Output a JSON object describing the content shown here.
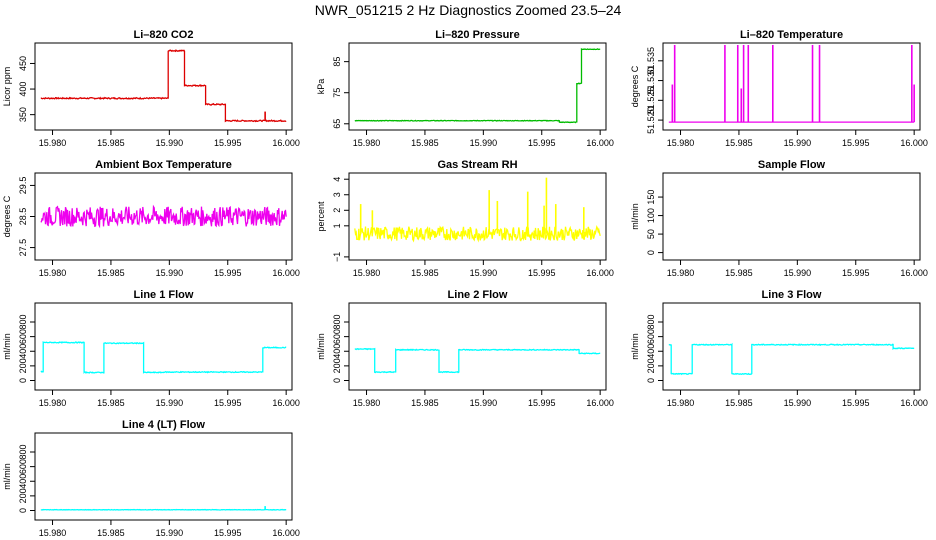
{
  "page": {
    "title": "NWR_051215  2 Hz Diagnostics Zoomed 23.5–24"
  },
  "chart_data": [
    {
      "type": "line",
      "title": "Li–820 CO2",
      "ylabel": "Licor ppm",
      "color": "#dd0000",
      "xlim": [
        15.9785,
        16.0005
      ],
      "ylim": [
        320,
        490
      ],
      "xticks": [
        15.98,
        15.985,
        15.99,
        15.995,
        16.0
      ],
      "xtick_labels": [
        "15.980",
        "15.985",
        "15.990",
        "15.995",
        "16.000"
      ],
      "yticks": [
        350,
        400,
        450
      ],
      "ytick_labels": [
        "350",
        "400",
        "450"
      ],
      "series": [
        {
          "name": "CO2",
          "noise": 1.2,
          "segments": [
            [
              15.979,
              15.9899,
              382
            ],
            [
              15.9899,
              15.9913,
              475
            ],
            [
              15.9913,
              15.9931,
              407
            ],
            [
              15.9931,
              15.9948,
              370
            ],
            [
              15.9948,
              16.0,
              338
            ]
          ],
          "spikes": [
            [
              15.9982,
              356
            ]
          ]
        }
      ]
    },
    {
      "type": "line",
      "title": "Li–820 Pressure",
      "ylabel": "kPa",
      "color": "#00bb00",
      "xlim": [
        15.9785,
        16.0005
      ],
      "ylim": [
        63,
        91
      ],
      "xticks": [
        15.98,
        15.985,
        15.99,
        15.995,
        16.0
      ],
      "xtick_labels": [
        "15.980",
        "15.985",
        "15.990",
        "15.995",
        "16.000"
      ],
      "yticks": [
        65,
        75,
        85
      ],
      "ytick_labels": [
        "65",
        "75",
        "85"
      ],
      "series": [
        {
          "name": "Pressure",
          "noise": 0.1,
          "segments": [
            [
              15.979,
              15.9965,
              66
            ],
            [
              15.9965,
              15.998,
              65.5
            ],
            [
              15.998,
              15.9984,
              78
            ],
            [
              15.9984,
              16.0,
              89
            ]
          ]
        }
      ]
    },
    {
      "type": "line",
      "title": "Li–820 Temperature",
      "ylabel": "degrees C",
      "color": "#ee00ee",
      "xlim": [
        15.9785,
        16.0005
      ],
      "ylim": [
        51.5175,
        51.5395
      ],
      "xticks": [
        15.98,
        15.985,
        15.99,
        15.995,
        16.0
      ],
      "xtick_labels": [
        "15.980",
        "15.985",
        "15.990",
        "15.995",
        "16.000"
      ],
      "yticks": [
        51.52,
        51.525,
        51.53,
        51.535
      ],
      "ytick_labels": [
        "51.520",
        "51.525",
        "51.530",
        "51.535"
      ],
      "series": [
        {
          "name": "Temperature",
          "noise": 0,
          "segments": [
            [
              15.979,
              16.0,
              51.5195
            ]
          ],
          "spikes": [
            [
              15.9793,
              51.529
            ],
            [
              15.9795,
              51.539
            ],
            [
              15.9838,
              51.539
            ],
            [
              15.9849,
              51.539
            ],
            [
              15.9852,
              51.528
            ],
            [
              15.9854,
              51.539
            ],
            [
              15.9858,
              51.539
            ],
            [
              15.9879,
              51.539
            ],
            [
              15.9913,
              51.539
            ],
            [
              15.9919,
              51.539
            ],
            [
              15.9998,
              51.539
            ],
            [
              16.0,
              51.529
            ]
          ]
        }
      ]
    },
    {
      "type": "line",
      "title": "Ambient Box Temperature",
      "ylabel": "degrees C",
      "color": "#ee00ee",
      "xlim": [
        15.9785,
        16.0005
      ],
      "ylim": [
        27.1,
        29.9
      ],
      "xticks": [
        15.98,
        15.985,
        15.99,
        15.995,
        16.0
      ],
      "xtick_labels": [
        "15.980",
        "15.985",
        "15.990",
        "15.995",
        "16.000"
      ],
      "yticks": [
        27.5,
        28.5,
        29.5
      ],
      "ytick_labels": [
        "27.5",
        "28.5",
        "29.5"
      ],
      "series": [
        {
          "name": "Ambient",
          "noise": 0.32,
          "segments": [
            [
              15.979,
              16.0,
              28.5
            ]
          ]
        }
      ]
    },
    {
      "type": "line",
      "title": "Gas Stream RH",
      "ylabel": "percent",
      "color": "#ffff00",
      "xlim": [
        15.9785,
        16.0005
      ],
      "ylim": [
        -1.2,
        4.4
      ],
      "xticks": [
        15.98,
        15.985,
        15.99,
        15.995,
        16.0
      ],
      "xtick_labels": [
        "15.980",
        "15.985",
        "15.990",
        "15.995",
        "16.000"
      ],
      "yticks": [
        -1,
        1,
        2,
        3,
        4
      ],
      "ytick_labels": [
        "−1",
        "1",
        "2",
        "3",
        "4"
      ],
      "series": [
        {
          "name": "RH",
          "noise": 0.45,
          "segments": [
            [
              15.979,
              16.0,
              0.5
            ]
          ],
          "spikes": [
            [
              15.9795,
              2.4
            ],
            [
              15.9805,
              2.0
            ],
            [
              15.9905,
              3.3
            ],
            [
              15.9912,
              2.6
            ],
            [
              15.9938,
              3.2
            ],
            [
              15.9952,
              2.3
            ],
            [
              15.9954,
              4.1
            ],
            [
              15.9962,
              2.4
            ],
            [
              15.9986,
              2.2
            ]
          ]
        }
      ]
    },
    {
      "type": "line",
      "title": "Sample Flow",
      "ylabel": "ml/min",
      "color": "#00ffff",
      "xlim": [
        15.9785,
        16.0005
      ],
      "ylim": [
        -20,
        215
      ],
      "xticks": [
        15.98,
        15.985,
        15.99,
        15.995,
        16.0
      ],
      "xtick_labels": [
        "15.980",
        "15.985",
        "15.990",
        "15.995",
        "16.000"
      ],
      "yticks": [
        0,
        50,
        100,
        150
      ],
      "ytick_labels": [
        "0",
        "50",
        "100",
        "150"
      ],
      "series": []
    },
    {
      "type": "line",
      "title": "Line 1 Flow",
      "ylabel": "ml/min",
      "color": "#00ffff",
      "xlim": [
        15.9785,
        16.0005
      ],
      "ylim": [
        -130,
        1060
      ],
      "xticks": [
        15.98,
        15.985,
        15.99,
        15.995,
        16.0
      ],
      "xtick_labels": [
        "15.980",
        "15.985",
        "15.990",
        "15.995",
        "16.000"
      ],
      "yticks": [
        0,
        200,
        400,
        600,
        800
      ],
      "ytick_labels": [
        "0",
        "200",
        "400",
        "600",
        "800"
      ],
      "series": [
        {
          "name": "Line 1",
          "noise": 6,
          "segments": [
            [
              15.979,
              15.9792,
              120
            ],
            [
              15.9792,
              15.9827,
              520
            ],
            [
              15.9827,
              15.9844,
              110
            ],
            [
              15.9844,
              15.9878,
              510
            ],
            [
              15.9878,
              15.9895,
              110
            ],
            [
              15.9895,
              15.998,
              115
            ],
            [
              15.998,
              16.0,
              450
            ]
          ]
        }
      ]
    },
    {
      "type": "line",
      "title": "Line 2 Flow",
      "ylabel": "ml/min",
      "color": "#00ffff",
      "xlim": [
        15.9785,
        16.0005
      ],
      "ylim": [
        -130,
        1060
      ],
      "xticks": [
        15.98,
        15.985,
        15.99,
        15.995,
        16.0
      ],
      "xtick_labels": [
        "15.980",
        "15.985",
        "15.990",
        "15.995",
        "16.000"
      ],
      "yticks": [
        0,
        200,
        400,
        600,
        800
      ],
      "ytick_labels": [
        "0",
        "200",
        "400",
        "600",
        "800"
      ],
      "series": [
        {
          "name": "Line 2",
          "noise": 6,
          "segments": [
            [
              15.979,
              15.9807,
              430
            ],
            [
              15.9807,
              15.9825,
              115
            ],
            [
              15.9825,
              15.9862,
              420
            ],
            [
              15.9862,
              15.9879,
              115
            ],
            [
              15.9879,
              15.9982,
              420
            ],
            [
              15.9982,
              16.0,
              370
            ]
          ]
        }
      ]
    },
    {
      "type": "line",
      "title": "Line 3 Flow",
      "ylabel": "ml/min",
      "color": "#00ffff",
      "xlim": [
        15.9785,
        16.0005
      ],
      "ylim": [
        -130,
        1060
      ],
      "xticks": [
        15.98,
        15.985,
        15.99,
        15.995,
        16.0
      ],
      "xtick_labels": [
        "15.980",
        "15.985",
        "15.990",
        "15.995",
        "16.000"
      ],
      "yticks": [
        0,
        200,
        400,
        600,
        800
      ],
      "ytick_labels": [
        "0",
        "200",
        "400",
        "600",
        "800"
      ],
      "series": [
        {
          "name": "Line 3",
          "noise": 6,
          "segments": [
            [
              15.979,
              15.9792,
              490
            ],
            [
              15.9792,
              15.981,
              90
            ],
            [
              15.981,
              15.9844,
              490
            ],
            [
              15.9844,
              15.9861,
              90
            ],
            [
              15.9861,
              15.9982,
              490
            ],
            [
              15.9982,
              16.0,
              440
            ]
          ]
        }
      ]
    },
    {
      "type": "line",
      "title": "Line 4 (LT) Flow",
      "ylabel": "ml/min",
      "color": "#00ffff",
      "xlim": [
        15.9785,
        16.0005
      ],
      "ylim": [
        -130,
        1060
      ],
      "xticks": [
        15.98,
        15.985,
        15.99,
        15.995,
        16.0
      ],
      "xtick_labels": [
        "15.980",
        "15.985",
        "15.990",
        "15.995",
        "16.000"
      ],
      "yticks": [
        0,
        200,
        400,
        600,
        800
      ],
      "ytick_labels": [
        "0",
        "200",
        "400",
        "600",
        "800"
      ],
      "series": [
        {
          "name": "Line 4",
          "noise": 3,
          "segments": [
            [
              15.979,
              16.0,
              10
            ]
          ],
          "spikes": [
            [
              15.9982,
              60
            ]
          ]
        }
      ]
    }
  ]
}
